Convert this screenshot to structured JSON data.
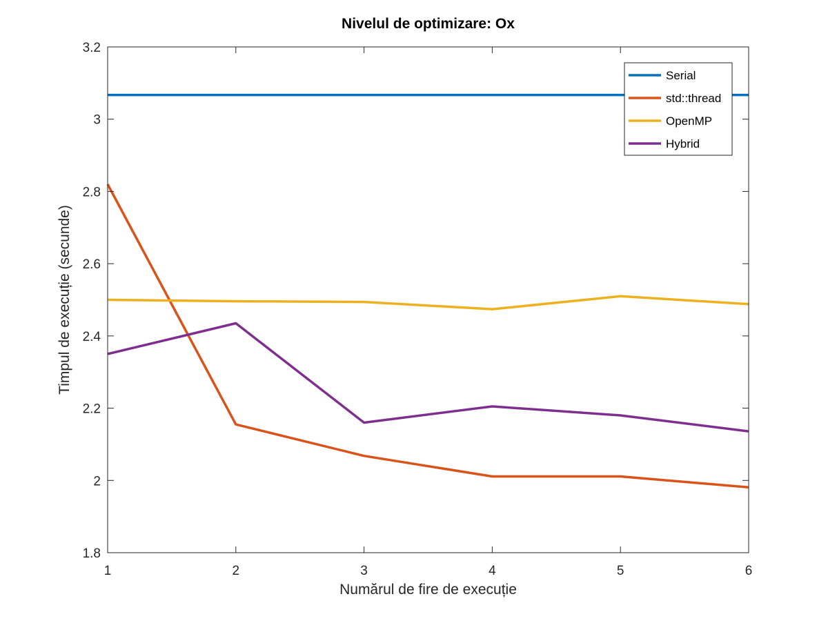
{
  "chart_data": {
    "type": "line",
    "title": "Nivelul de optimizare: Ox",
    "xlabel": "Numărul de fire de execuție",
    "ylabel": "Timpul de execuție (secunde)",
    "xlim": [
      1,
      6
    ],
    "ylim": [
      1.8,
      3.2
    ],
    "xticks": [
      1,
      2,
      3,
      4,
      5,
      6
    ],
    "yticks": [
      1.8,
      2,
      2.2,
      2.4,
      2.6,
      2.8,
      3,
      3.2
    ],
    "ytick_labels": [
      "1.8",
      "2",
      "2.2",
      "2.4",
      "2.6",
      "2.8",
      "3",
      "3.2"
    ],
    "grid": false,
    "legend_position": "top-right",
    "x": [
      1,
      2,
      3,
      4,
      5,
      6
    ],
    "series": [
      {
        "name": "Serial",
        "color": "#0072BD",
        "values": [
          3.067,
          3.067,
          3.067,
          3.067,
          3.067,
          3.067
        ]
      },
      {
        "name": "std::thread",
        "color": "#D95319",
        "values": [
          2.82,
          2.155,
          2.068,
          2.011,
          2.011,
          1.981
        ]
      },
      {
        "name": "OpenMP",
        "color": "#EDB120",
        "values": [
          2.5,
          2.496,
          2.494,
          2.474,
          2.51,
          2.488
        ]
      },
      {
        "name": "Hybrid",
        "color": "#7E2F8E",
        "values": [
          2.35,
          2.435,
          2.16,
          2.205,
          2.18,
          2.136
        ]
      }
    ]
  }
}
